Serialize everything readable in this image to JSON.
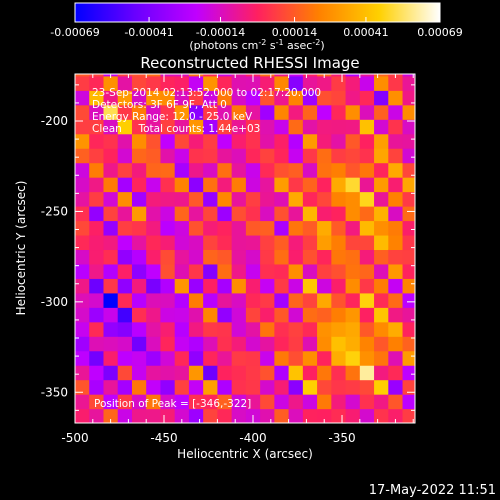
{
  "chart_data": {
    "type": "heatmap",
    "title": "Reconstructed RHESSI Image",
    "xlabel": "Heliocentric X (arcsec)",
    "ylabel": "Heliocentric Y (arcsec)",
    "xlim": [
      -500,
      -309
    ],
    "ylim": [
      -367,
      -174
    ],
    "xticks": [
      -500,
      -450,
      -400,
      -350
    ],
    "yticks": [
      -350,
      -300,
      -250,
      -200
    ],
    "colorbar": {
      "ticks": [
        "-0.00069",
        "-0.00041",
        "-0.00014",
        "0.00014",
        "0.00041",
        "0.00069"
      ],
      "label": "(photons cm",
      "label_sup1": "-2",
      "label_mid": " s",
      "label_sup2": "-1",
      "label_tail": " asec",
      "label_sup3": "-2",
      "label_end": ")",
      "min": -0.00069,
      "max": 0.00069,
      "colors": [
        "#0000ff",
        "#6a00ff",
        "#c000ff",
        "#ff2060",
        "#ff8000",
        "#ffd000",
        "#ffffff"
      ]
    },
    "pixel_size_arcsec": 8,
    "peak_position": [
      -346,
      -322
    ],
    "annotations": [
      "23-Sep-2014 02:13:52.000 to 02:17:20.000",
      "Detectors: 3F 6F 9F, Att 0",
      "Energy Range: 12.0 - 25.0 keV",
      "Clean     Total counts: 1.44e+03"
    ],
    "peak_text": "Position of Peak = [-346,-322]"
  },
  "timestamp": "17-May-2022 11:51"
}
